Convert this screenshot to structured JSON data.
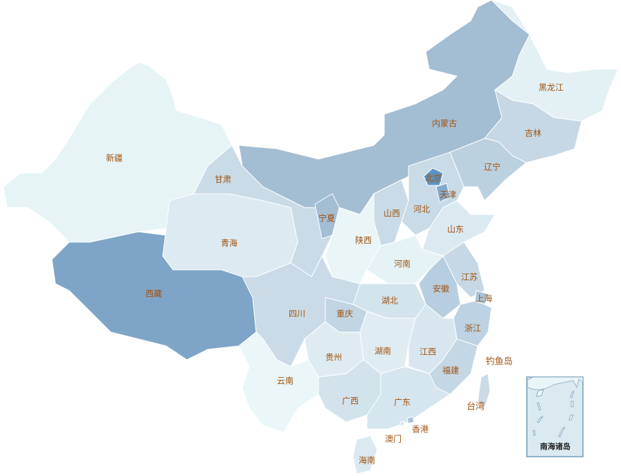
{
  "map": {
    "provinces": [
      {
        "id": "xinjiang",
        "name": "新疆",
        "color": "#e6f4f6"
      },
      {
        "id": "xizang",
        "name": "西藏",
        "color": "#7ea5c7"
      },
      {
        "id": "qinghai",
        "name": "青海",
        "color": "#dceaf1"
      },
      {
        "id": "gansu",
        "name": "甘肃",
        "color": "#c9dbe7"
      },
      {
        "id": "neimenggu",
        "name": "内蒙古",
        "color": "#a3bdd3"
      },
      {
        "id": "heilongjiang",
        "name": "黑龙江",
        "color": "#e3f1f4"
      },
      {
        "id": "jilin",
        "name": "吉林",
        "color": "#c6d8e5"
      },
      {
        "id": "liaoning",
        "name": "辽宁",
        "color": "#bcd1e0"
      },
      {
        "id": "hebei",
        "name": "河北",
        "color": "#c8dbe7"
      },
      {
        "id": "beijing",
        "name": "北京",
        "color": "#5b93c2"
      },
      {
        "id": "tianjin",
        "name": "天津",
        "color": "#83a9cb"
      },
      {
        "id": "shanxi",
        "name": "山西",
        "color": "#c9dbe7"
      },
      {
        "id": "shaanxi",
        "name": "陕西",
        "color": "#e9f5f7"
      },
      {
        "id": "ningxia",
        "name": "宁夏",
        "color": "#a3bdd3"
      },
      {
        "id": "shandong",
        "name": "山东",
        "color": "#dbeaf0"
      },
      {
        "id": "henan",
        "name": "河南",
        "color": "#e6f3f6"
      },
      {
        "id": "jiangsu",
        "name": "江苏",
        "color": "#c6d8e5"
      },
      {
        "id": "anhui",
        "name": "安徽",
        "color": "#b7cee0"
      },
      {
        "id": "shanghai",
        "name": "上海",
        "color": "#a9c3d8"
      },
      {
        "id": "zhejiang",
        "name": "浙江",
        "color": "#bdd2e2"
      },
      {
        "id": "hubei",
        "name": "湖北",
        "color": "#d4e4ed"
      },
      {
        "id": "chongqing",
        "name": "重庆",
        "color": "#c1d5e3"
      },
      {
        "id": "sichuan",
        "name": "四川",
        "color": "#cadbe7"
      },
      {
        "id": "guizhou",
        "name": "贵州",
        "color": "#deecf2"
      },
      {
        "id": "hunan",
        "name": "湖南",
        "color": "#dfedf2"
      },
      {
        "id": "jiangxi",
        "name": "江西",
        "color": "#d8e7ef"
      },
      {
        "id": "fujian",
        "name": "福建",
        "color": "#c3d7e4"
      },
      {
        "id": "yunnan",
        "name": "云南",
        "color": "#eaf6f7"
      },
      {
        "id": "guangxi",
        "name": "广西",
        "color": "#d3e3ec"
      },
      {
        "id": "guangdong",
        "name": "广东",
        "color": "#d6e6ee"
      },
      {
        "id": "hainan",
        "name": "海南",
        "color": "#dbe9f0"
      },
      {
        "id": "taiwan",
        "name": "台湾",
        "color": "#c9dbe7"
      },
      {
        "id": "xianggang",
        "name": "香港",
        "color": "#a9c3d8"
      },
      {
        "id": "aomen",
        "name": "澳门",
        "color": "#dbe9f0"
      }
    ],
    "extra_labels": {
      "diaoyudao": "钓鱼岛"
    },
    "inset": {
      "title": "南海诸岛",
      "border_color": "#8fb0c8",
      "fill": "#dbe9f0"
    },
    "label_color": "#a0520f"
  }
}
